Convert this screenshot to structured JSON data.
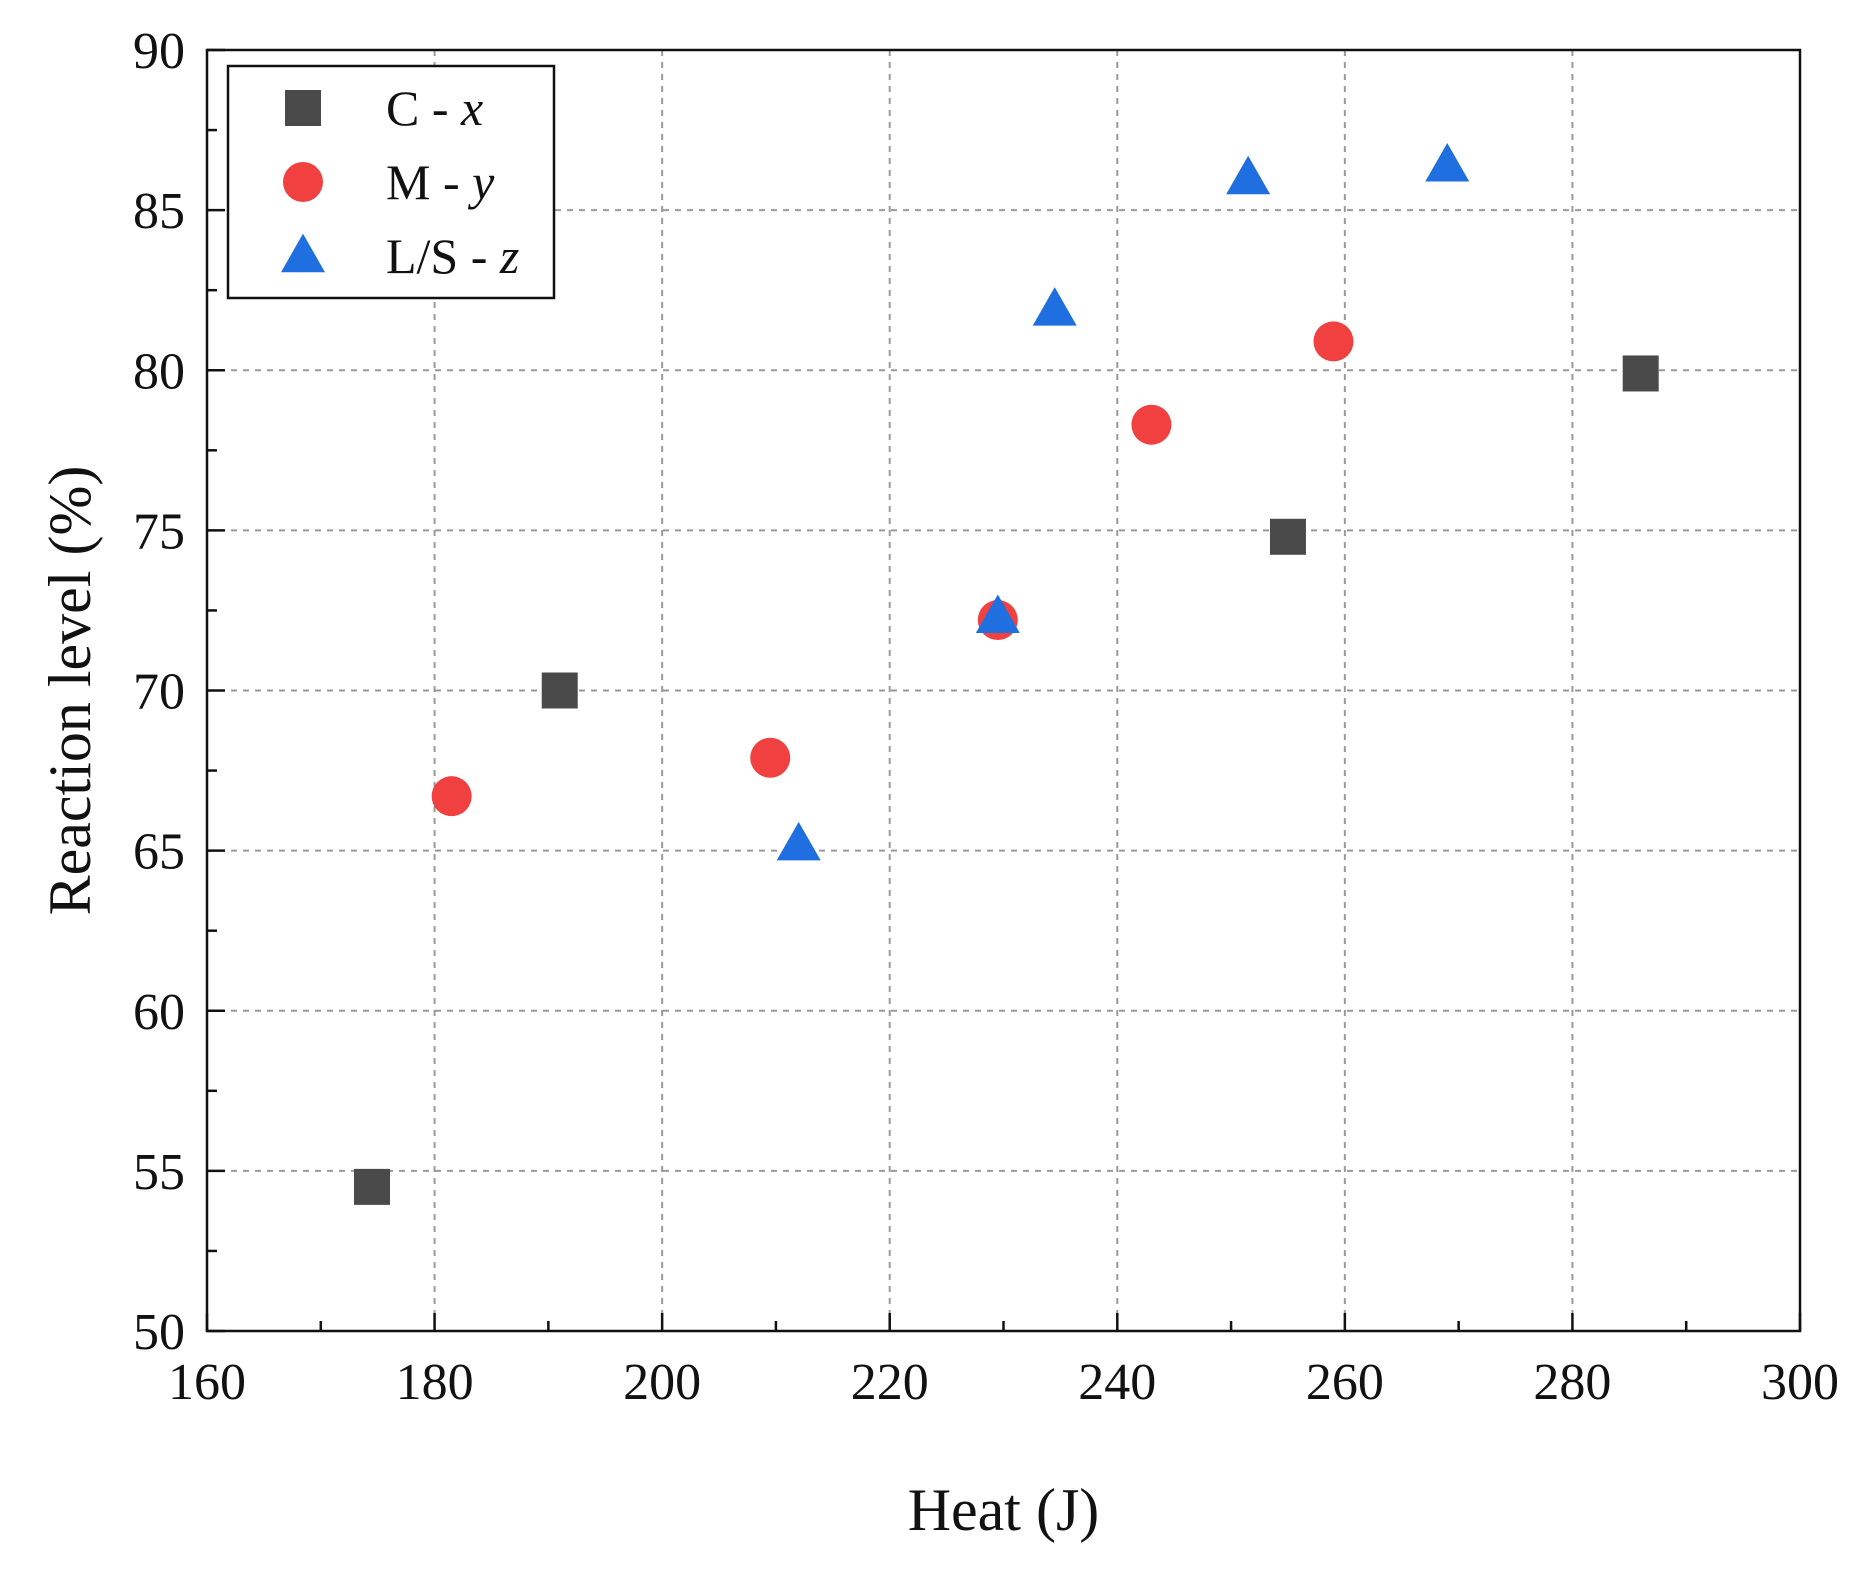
{
  "chart_data": {
    "type": "scatter",
    "title": "",
    "xlabel": "Heat (J)",
    "ylabel": "Reaction level (%)",
    "xlim": [
      160,
      300
    ],
    "ylim": [
      50,
      90
    ],
    "xticks": [
      160,
      180,
      200,
      220,
      240,
      260,
      280,
      300
    ],
    "yticks": [
      50,
      55,
      60,
      65,
      70,
      75,
      80,
      85,
      90
    ],
    "grid": true,
    "legend_position": "top-left",
    "series": [
      {
        "name": "C - x",
        "name_main": "C - ",
        "name_var": "x",
        "marker": "square",
        "color": "#4a4a4a",
        "points": [
          {
            "x": 174.5,
            "y": 54.5
          },
          {
            "x": 191,
            "y": 70.0
          },
          {
            "x": 255,
            "y": 74.8
          },
          {
            "x": 286,
            "y": 79.9
          }
        ]
      },
      {
        "name": "M - y",
        "name_main": "M - ",
        "name_var": "y",
        "marker": "circle",
        "color": "#f04040",
        "points": [
          {
            "x": 181.5,
            "y": 66.7
          },
          {
            "x": 209.5,
            "y": 67.9
          },
          {
            "x": 229.5,
            "y": 72.2
          },
          {
            "x": 243,
            "y": 78.3
          },
          {
            "x": 259,
            "y": 80.9
          }
        ]
      },
      {
        "name": "L/S - z",
        "name_main": "L/S - ",
        "name_var": "z",
        "marker": "triangle",
        "color": "#1f6fe0",
        "points": [
          {
            "x": 212,
            "y": 65.2
          },
          {
            "x": 229.5,
            "y": 72.3
          },
          {
            "x": 234.5,
            "y": 81.9
          },
          {
            "x": 251.5,
            "y": 86.0
          },
          {
            "x": 269,
            "y": 86.4
          }
        ]
      }
    ]
  }
}
